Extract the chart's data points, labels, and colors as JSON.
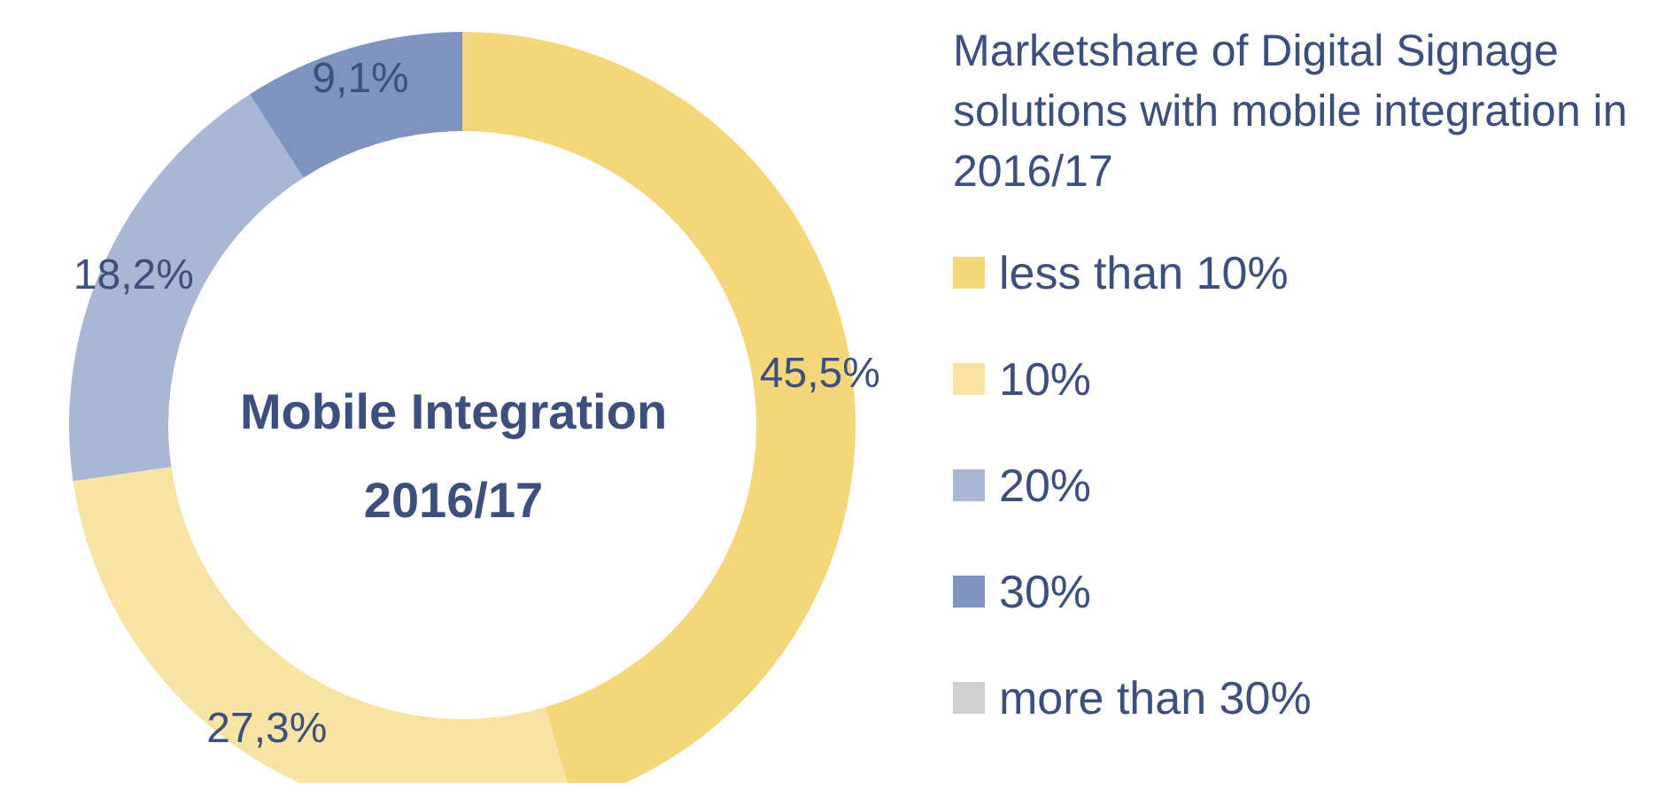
{
  "chart_data": {
    "type": "donut",
    "title": "Mobile Integration 2016/17",
    "legend_title": "Marketshare of Digital Signage solutions with mobile integration in 2016/17",
    "categories": [
      "less than 10%",
      "10%",
      "20%",
      "30%",
      "more than 30%"
    ],
    "values": [
      45.5,
      27.3,
      18.2,
      9.1,
      0
    ],
    "colors": [
      "#f3d77a",
      "#f7e3a3",
      "#a9b6d4",
      "#7f93bf",
      "#d0d0d0"
    ],
    "value_labels": [
      "45,5%",
      "27,3%",
      "18,2%",
      "9,1%",
      null
    ],
    "legend": "right"
  }
}
